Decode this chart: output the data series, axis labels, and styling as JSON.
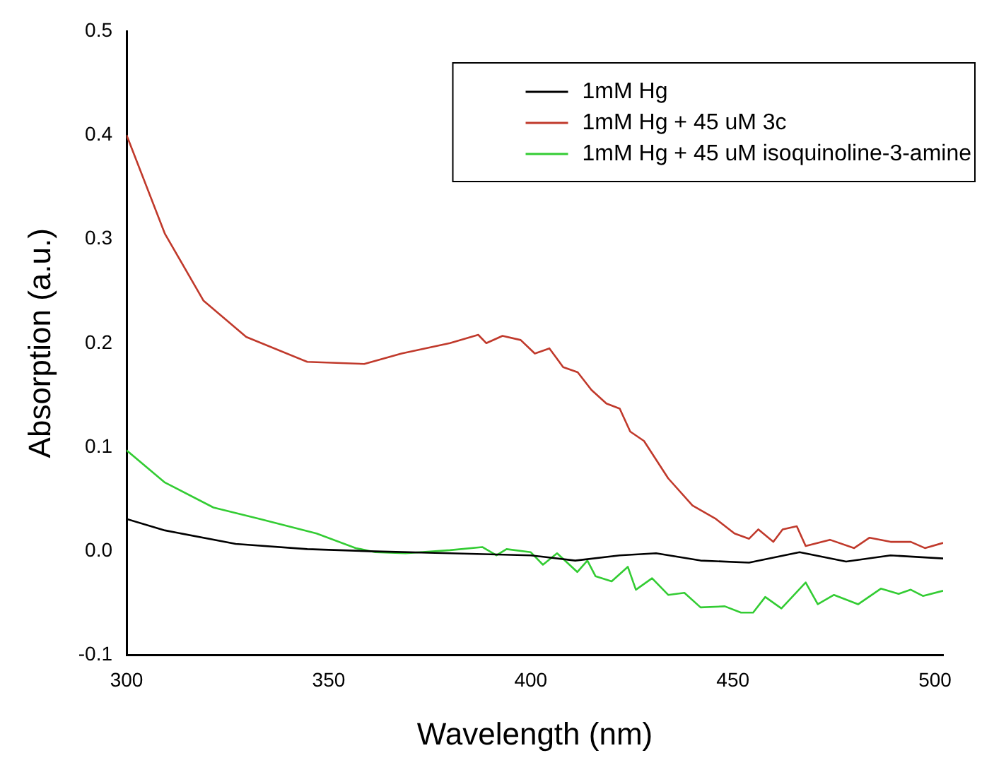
{
  "chart_data": {
    "type": "line",
    "xlabel": "Wavelength (nm)",
    "ylabel": "Absorption (a.u.)",
    "xlim": [
      300,
      502
    ],
    "xticks": [
      300,
      350,
      400,
      450,
      500
    ],
    "ylim": [
      -0.1,
      0.5
    ],
    "yticks": [
      -0.1,
      {
        "value": 0,
        "label": "0.0"
      },
      0.1,
      0.2,
      0.3,
      0.4,
      0.5
    ],
    "grid": false,
    "legend": "top right",
    "marker": "none",
    "line_style": "solid",
    "series": [
      {
        "name": "1mM Hg",
        "color": "#000000",
        "x": [
          300,
          309.5,
          327,
          344.7,
          360,
          380,
          400,
          411,
          422,
          431,
          442,
          454,
          466.5,
          478,
          489,
          502
        ],
        "values": [
          0.031,
          0.02,
          0.007,
          0.002,
          0,
          -0.002,
          -0.004,
          -0.009,
          -0.004,
          -0.002,
          -0.009,
          -0.011,
          -0.001,
          -0.01,
          -0.004,
          -0.007
        ]
      },
      {
        "name": "1mM Hg + 45 uM 3c",
        "color": "#c0392b",
        "x": [
          300,
          309.5,
          319,
          329.6,
          344.7,
          358.8,
          368,
          380,
          387,
          389,
          393,
          397.5,
          401,
          404.6,
          408,
          411.6,
          415,
          418.7,
          422,
          424.6,
          428,
          434,
          440,
          445.8,
          450.4,
          454,
          456.3,
          460,
          462.3,
          465.8,
          468,
          474,
          480,
          483.8,
          489,
          494,
          497.5,
          502
        ],
        "values": [
          0.4,
          0.305,
          0.241,
          0.206,
          0.182,
          0.18,
          0.19,
          0.2,
          0.208,
          0.2,
          0.207,
          0.203,
          0.19,
          0.195,
          0.177,
          0.172,
          0.155,
          0.142,
          0.137,
          0.115,
          0.106,
          0.07,
          0.044,
          0.031,
          0.017,
          0.012,
          0.021,
          0.009,
          0.021,
          0.024,
          0.005,
          0.011,
          0.003,
          0.013,
          0.009,
          0.009,
          0.003,
          0.008
        ]
      },
      {
        "name": "1mM Hg + 45 uM isoquinoline-3-amine",
        "color": "#33cc33",
        "x": [
          300,
          309.5,
          321.5,
          333,
          347,
          356.7,
          361.5,
          369,
          380,
          388,
          391.5,
          394,
          400,
          403,
          406.5,
          411.5,
          414,
          416,
          420,
          424,
          426,
          430,
          434,
          438,
          442,
          448,
          452,
          455,
          458,
          462,
          468,
          471,
          475,
          481,
          486.6,
          491,
          494,
          497,
          502
        ],
        "values": [
          0.097,
          0.066,
          0.042,
          0.031,
          0.017,
          0.003,
          -0.001,
          -0.002,
          0.001,
          0.004,
          -0.004,
          0.002,
          -0.001,
          -0.013,
          -0.002,
          -0.02,
          -0.009,
          -0.024,
          -0.029,
          -0.015,
          -0.037,
          -0.026,
          -0.042,
          -0.04,
          -0.054,
          -0.053,
          -0.059,
          -0.059,
          -0.044,
          -0.055,
          -0.03,
          -0.051,
          -0.042,
          -0.051,
          -0.036,
          -0.041,
          -0.037,
          -0.043,
          -0.038
        ]
      }
    ]
  }
}
